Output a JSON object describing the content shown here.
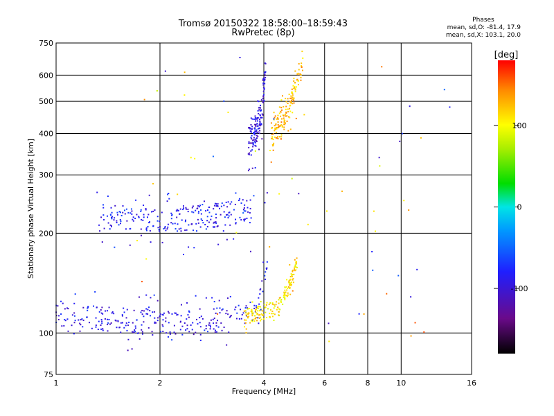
{
  "header": {
    "title": "Tromsø 20150322 18:58:00–18:59:43",
    "subtitle": "RwPretec (8p)"
  },
  "stats": {
    "heading": "Phases",
    "line_o": "mean, sd,O: -81.4, 17.9",
    "line_x": "mean, sd,X: 103.1, 20.0"
  },
  "colorbar": {
    "label": "[deg]",
    "ticks": [
      "100",
      "0",
      "-100"
    ],
    "tick_values": [
      100,
      0,
      -100
    ],
    "range": [
      -180,
      180
    ]
  },
  "chart_data": {
    "type": "scatter",
    "xlabel": "Frequency [MHz]",
    "ylabel": "Stationary phase Virtual Height [km]",
    "xscale": "log",
    "yscale": "log",
    "xlim": [
      1,
      16
    ],
    "ylim": [
      75,
      750
    ],
    "xticks": [
      1,
      2,
      4,
      6,
      8,
      10,
      16
    ],
    "xtick_labels": [
      "1",
      "2",
      "4",
      "6",
      "8",
      "10",
      "16"
    ],
    "yticks": [
      75,
      100,
      200,
      300,
      400,
      500,
      600,
      750
    ],
    "ytick_labels": [
      "75",
      "100",
      "200",
      "300",
      "400",
      "500",
      "600",
      "750"
    ],
    "grid": true,
    "color_variable": "phase [deg]",
    "traces": [
      {
        "o_mode_fo": [
          [
            1.0,
            115
          ],
          [
            1.3,
            112
          ],
          [
            1.6,
            110
          ],
          [
            2.0,
            108
          ],
          [
            2.5,
            108
          ],
          [
            3.0,
            109
          ],
          [
            3.5,
            112
          ],
          [
            3.8,
            120
          ],
          [
            4.0,
            140
          ],
          [
            4.1,
            170
          ]
        ],
        "phase": -90,
        "spread_km": 10
      },
      {
        "x_mode": [
          [
            3.5,
            113
          ],
          [
            4.0,
            115
          ],
          [
            4.4,
            120
          ],
          [
            4.7,
            135
          ],
          [
            4.9,
            155
          ],
          [
            5.0,
            165
          ]
        ],
        "phase": 110,
        "spread_km": 6
      },
      {
        "o_mode_f1": [
          [
            1.3,
            225
          ],
          [
            1.6,
            222
          ],
          [
            2.0,
            222
          ],
          [
            2.5,
            224
          ],
          [
            3.0,
            228
          ],
          [
            3.5,
            233
          ],
          [
            3.7,
            235
          ]
        ],
        "phase": -85,
        "spread_km": 20
      },
      {
        "o_mode_f2": [
          [
            3.6,
            380
          ],
          [
            3.8,
            410
          ],
          [
            3.95,
            470
          ],
          [
            4.0,
            560
          ],
          [
            4.05,
            640
          ]
        ],
        "phase": -95,
        "spread_km": 40
      },
      {
        "x_mode_f2": [
          [
            4.2,
            400
          ],
          [
            4.5,
            430
          ],
          [
            4.8,
            500
          ],
          [
            5.0,
            600
          ],
          [
            5.2,
            640
          ]
        ],
        "phase": 125,
        "spread_km": 40
      }
    ]
  }
}
